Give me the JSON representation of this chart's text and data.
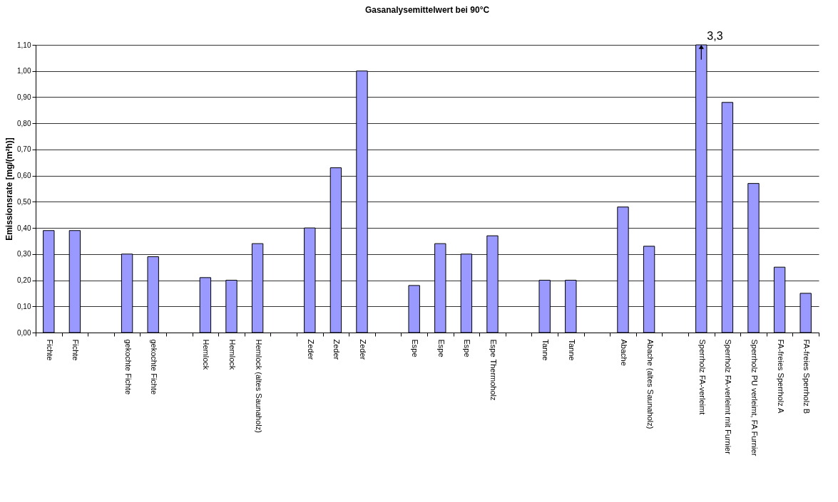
{
  "chart_data": {
    "type": "bar",
    "title": "Gasanalysemittelwert bei 90°C",
    "ylabel": "Emissionsrate [mg/(m²h)]",
    "categories": [
      "Fichte",
      "Fichte",
      null,
      "gekochte Fichte",
      "gekochte Fichte",
      null,
      "Hemlock",
      "Hemlock",
      "Hemlock (altes Saunaholz)",
      null,
      "Zeder",
      "Zeder",
      "Zeder",
      null,
      "Espe",
      "Espe",
      "Espe",
      "Espe Thermoholz",
      null,
      "Tanne",
      "Tanne",
      null,
      "Abache",
      "Abache (altes Saunaholz)",
      null,
      "Sperrholz FA-verleimt",
      "Sperrholz FA-verleimt mit Furnier",
      "Sperrholz PU verleimt, FA Furnier",
      "FA-freies Sperrholz A",
      "FA-freies Sperrholz B"
    ],
    "values": [
      0.39,
      0.39,
      null,
      0.3,
      0.29,
      null,
      0.21,
      0.2,
      0.34,
      null,
      0.4,
      0.63,
      1.0,
      null,
      0.18,
      0.34,
      0.3,
      0.37,
      null,
      0.2,
      0.2,
      null,
      0.48,
      0.33,
      null,
      1.1,
      0.88,
      0.57,
      0.25,
      0.15
    ],
    "color": "#9999ff",
    "ylim": [
      0,
      1.1
    ],
    "yticks": [
      {
        "value": 0,
        "label": "0,00"
      },
      {
        "value": 0.1,
        "label": "0,10"
      },
      {
        "value": 0.2,
        "label": "0,20"
      },
      {
        "value": 0.3,
        "label": "0,30"
      },
      {
        "value": 0.4,
        "label": "0,40"
      },
      {
        "value": 0.5,
        "label": "0,50"
      },
      {
        "value": 0.6,
        "label": "0,60"
      },
      {
        "value": 0.7,
        "label": "0,70"
      },
      {
        "value": 0.8,
        "label": "0,80"
      },
      {
        "value": 0.9,
        "label": "0,90"
      },
      {
        "value": 1.0,
        "label": "1,00"
      },
      {
        "value": 1.1,
        "label": "1,10"
      }
    ],
    "grid": "y",
    "annotations": [
      {
        "text": "3,3",
        "x": "Sperrholz FA-verleimt",
        "y": 1.1
      }
    ]
  }
}
